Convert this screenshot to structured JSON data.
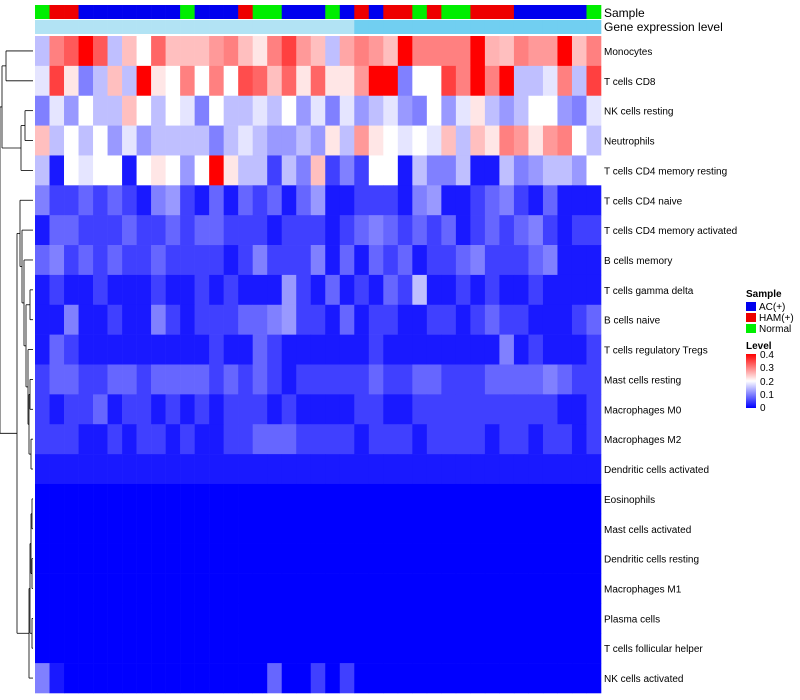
{
  "chart_data": {
    "type": "heatmap",
    "title": "",
    "annotation_titles": [
      "Sample",
      "Gene expression level"
    ],
    "rows": [
      "Monocytes",
      "T cells CD8",
      "NK cells resting",
      "Neutrophils",
      "T cells CD4 memory resting",
      "T cells CD4 naive",
      "T cells CD4 memory activated",
      "B cells memory",
      "T cells gamma delta",
      "B cells naive",
      "T cells regulatory  Tregs",
      "Mast cells resting",
      "Macrophages M0",
      "Macrophages M2",
      "Dendritic cells activated",
      "Eosinophils",
      "Mast cells activated",
      "Dendritic cells resting",
      "Macrophages M1",
      "Plasma cells",
      "T cells follicular helper",
      "NK cells activated"
    ],
    "sample_groups": [
      "N",
      "H",
      "H",
      "A",
      "A",
      "A",
      "A",
      "A",
      "A",
      "A",
      "N",
      "A",
      "A",
      "A",
      "H",
      "N",
      "N",
      "A",
      "A",
      "A",
      "N",
      "A",
      "H",
      "A",
      "H",
      "H",
      "N",
      "H",
      "N",
      "N",
      "H",
      "H",
      "H",
      "A",
      "A",
      "A",
      "A",
      "A",
      "N"
    ],
    "expression_level": [
      0.2,
      0.2,
      0.2,
      0.2,
      0.2,
      0.2,
      0.2,
      0.2,
      0.2,
      0.2,
      0.2,
      0.2,
      0.2,
      0.2,
      0.2,
      0.2,
      0.2,
      0.2,
      0.2,
      0.2,
      0.2,
      0.2,
      0.8,
      0.8,
      0.8,
      0.8,
      0.8,
      0.8,
      0.8,
      0.8,
      0.8,
      0.8,
      0.8,
      0.8,
      0.8,
      0.8,
      0.8,
      0.8,
      0.8
    ],
    "values": [
      [
        0.15,
        0.3,
        0.33,
        0.4,
        0.33,
        0.15,
        0.25,
        0.2,
        0.32,
        0.25,
        0.25,
        0.25,
        0.28,
        0.3,
        0.25,
        0.22,
        0.3,
        0.35,
        0.28,
        0.25,
        0.15,
        0.27,
        0.3,
        0.28,
        0.25,
        0.4,
        0.3,
        0.3,
        0.3,
        0.3,
        0.4,
        0.26,
        0.25,
        0.3,
        0.28,
        0.28,
        0.4,
        0.25,
        0.3
      ],
      [
        0.18,
        0.35,
        0.22,
        0.1,
        0.15,
        0.25,
        0.15,
        0.4,
        0.22,
        0.2,
        0.3,
        0.2,
        0.3,
        0.2,
        0.34,
        0.32,
        0.25,
        0.32,
        0.22,
        0.32,
        0.22,
        0.22,
        0.28,
        0.4,
        0.4,
        0.1,
        0.2,
        0.2,
        0.35,
        0.3,
        0.4,
        0.3,
        0.4,
        0.15,
        0.15,
        0.18,
        0.3,
        0.15,
        0.35
      ],
      [
        0.1,
        0.18,
        0.12,
        0.2,
        0.15,
        0.15,
        0.25,
        0.2,
        0.15,
        0.2,
        0.18,
        0.1,
        0.2,
        0.15,
        0.15,
        0.18,
        0.15,
        0.2,
        0.12,
        0.18,
        0.1,
        0.18,
        0.12,
        0.15,
        0.18,
        0.12,
        0.1,
        0.2,
        0.12,
        0.18,
        0.22,
        0.15,
        0.12,
        0.15,
        0.2,
        0.2,
        0.12,
        0.1,
        0.18
      ],
      [
        0.25,
        0.15,
        0.2,
        0.15,
        0.2,
        0.12,
        0.18,
        0.12,
        0.15,
        0.15,
        0.15,
        0.15,
        0.1,
        0.15,
        0.18,
        0.15,
        0.12,
        0.12,
        0.15,
        0.12,
        0.22,
        0.15,
        0.28,
        0.22,
        0.2,
        0.18,
        0.2,
        0.18,
        0.25,
        0.15,
        0.25,
        0.22,
        0.3,
        0.28,
        0.22,
        0.28,
        0.3,
        0.2,
        0.15
      ],
      [
        0.15,
        0.02,
        0.2,
        0.18,
        0.2,
        0.2,
        0.02,
        0.2,
        0.22,
        0.2,
        0.12,
        0.2,
        0.4,
        0.22,
        0.15,
        0.15,
        0.05,
        0.15,
        0.1,
        0.25,
        0.05,
        0.1,
        0.05,
        0.2,
        0.2,
        0.02,
        0.15,
        0.1,
        0.1,
        0.15,
        0.02,
        0.02,
        0.15,
        0.1,
        0.12,
        0.15,
        0.15,
        0.12,
        0.2
      ],
      [
        0.1,
        0.05,
        0.05,
        0.08,
        0.05,
        0.08,
        0.05,
        0.02,
        0.1,
        0.12,
        0.05,
        0.02,
        0.08,
        0.02,
        0.08,
        0.05,
        0.08,
        0.02,
        0.08,
        0.12,
        0.02,
        0.02,
        0.05,
        0.05,
        0.05,
        0.02,
        0.1,
        0.12,
        0.02,
        0.02,
        0.05,
        0.08,
        0.1,
        0.05,
        0.02,
        0.08,
        0.02,
        0.02,
        0.02
      ],
      [
        0.02,
        0.08,
        0.08,
        0.05,
        0.05,
        0.05,
        0.08,
        0.05,
        0.05,
        0.08,
        0.05,
        0.08,
        0.08,
        0.05,
        0.05,
        0.05,
        0.02,
        0.05,
        0.05,
        0.05,
        0.02,
        0.05,
        0.08,
        0.1,
        0.08,
        0.05,
        0.08,
        0.05,
        0.08,
        0.02,
        0.05,
        0.08,
        0.05,
        0.08,
        0.1,
        0.05,
        0.02,
        0.05,
        0.05
      ],
      [
        0.08,
        0.1,
        0.05,
        0.08,
        0.05,
        0.08,
        0.05,
        0.05,
        0.08,
        0.05,
        0.05,
        0.05,
        0.05,
        0.02,
        0.05,
        0.1,
        0.05,
        0.05,
        0.05,
        0.1,
        0.02,
        0.08,
        0.02,
        0.08,
        0.05,
        0.08,
        0.02,
        0.05,
        0.05,
        0.08,
        0.1,
        0.05,
        0.05,
        0.05,
        0.08,
        0.1,
        0.02,
        0.02,
        0.02
      ],
      [
        0.02,
        0.05,
        0.02,
        0.02,
        0.05,
        0.02,
        0.02,
        0.02,
        0.05,
        0.02,
        0.02,
        0.05,
        0.02,
        0.05,
        0.02,
        0.02,
        0.02,
        0.12,
        0.05,
        0.02,
        0.08,
        0.02,
        0.05,
        0.02,
        0.08,
        0.05,
        0.15,
        0.02,
        0.02,
        0.05,
        0.02,
        0.05,
        0.02,
        0.02,
        0.05,
        0.02,
        0.02,
        0.02,
        0.02
      ],
      [
        0.02,
        0.02,
        0.1,
        0.02,
        0.02,
        0.05,
        0.02,
        0.02,
        0.1,
        0.05,
        0.02,
        0.05,
        0.05,
        0.05,
        0.08,
        0.08,
        0.1,
        0.12,
        0.05,
        0.05,
        0.02,
        0.08,
        0.02,
        0.05,
        0.05,
        0.02,
        0.02,
        0.05,
        0.05,
        0.02,
        0.05,
        0.08,
        0.05,
        0.05,
        0.02,
        0.02,
        0.02,
        0.05,
        0.08
      ],
      [
        0.02,
        0.08,
        0.05,
        0.02,
        0.02,
        0.02,
        0.02,
        0.02,
        0.02,
        0.02,
        0.02,
        0.02,
        0.05,
        0.02,
        0.02,
        0.08,
        0.05,
        0.02,
        0.02,
        0.02,
        0.02,
        0.02,
        0.02,
        0.05,
        0.02,
        0.02,
        0.02,
        0.02,
        0.02,
        0.02,
        0.02,
        0.02,
        0.1,
        0.02,
        0.05,
        0.02,
        0.02,
        0.02,
        0.05
      ],
      [
        0.05,
        0.08,
        0.08,
        0.05,
        0.05,
        0.08,
        0.08,
        0.05,
        0.08,
        0.08,
        0.08,
        0.08,
        0.05,
        0.08,
        0.05,
        0.08,
        0.05,
        0.02,
        0.05,
        0.05,
        0.05,
        0.05,
        0.05,
        0.08,
        0.05,
        0.05,
        0.08,
        0.08,
        0.05,
        0.05,
        0.05,
        0.08,
        0.08,
        0.08,
        0.08,
        0.1,
        0.08,
        0.05,
        0.05
      ],
      [
        0.05,
        0.02,
        0.05,
        0.05,
        0.08,
        0.02,
        0.05,
        0.05,
        0.02,
        0.05,
        0.02,
        0.05,
        0.02,
        0.05,
        0.05,
        0.05,
        0.02,
        0.05,
        0.02,
        0.02,
        0.02,
        0.02,
        0.05,
        0.05,
        0.02,
        0.02,
        0.05,
        0.05,
        0.05,
        0.05,
        0.05,
        0.05,
        0.05,
        0.05,
        0.05,
        0.05,
        0.02,
        0.02,
        0.05
      ],
      [
        0.05,
        0.05,
        0.05,
        0.02,
        0.02,
        0.05,
        0.02,
        0.05,
        0.05,
        0.02,
        0.05,
        0.02,
        0.02,
        0.05,
        0.05,
        0.08,
        0.08,
        0.08,
        0.05,
        0.05,
        0.05,
        0.05,
        0.02,
        0.05,
        0.05,
        0.05,
        0.02,
        0.05,
        0.05,
        0.05,
        0.05,
        0.02,
        0.05,
        0.05,
        0.02,
        0.05,
        0.05,
        0.02,
        0.05
      ],
      [
        0.02,
        0.02,
        0.02,
        0.02,
        0.02,
        0.02,
        0.02,
        0.02,
        0.02,
        0.02,
        0.02,
        0.02,
        0.02,
        0.02,
        0.02,
        0.02,
        0.02,
        0.02,
        0.02,
        0.02,
        0.02,
        0.02,
        0.02,
        0.02,
        0.02,
        0.02,
        0.02,
        0.02,
        0.02,
        0.02,
        0.02,
        0.02,
        0.02,
        0.02,
        0.02,
        0.02,
        0.02,
        0.02,
        0.02
      ],
      [
        0,
        0,
        0,
        0,
        0,
        0,
        0,
        0,
        0,
        0,
        0,
        0,
        0,
        0,
        0,
        0,
        0,
        0,
        0,
        0,
        0,
        0,
        0,
        0,
        0,
        0,
        0,
        0,
        0,
        0,
        0,
        0,
        0,
        0,
        0,
        0,
        0,
        0,
        0
      ],
      [
        0,
        0,
        0,
        0,
        0,
        0,
        0,
        0,
        0,
        0,
        0,
        0,
        0,
        0,
        0,
        0,
        0,
        0,
        0,
        0,
        0,
        0,
        0,
        0,
        0,
        0,
        0,
        0,
        0,
        0,
        0,
        0,
        0,
        0,
        0,
        0,
        0,
        0,
        0
      ],
      [
        0,
        0,
        0,
        0,
        0,
        0,
        0,
        0,
        0,
        0,
        0,
        0,
        0,
        0,
        0,
        0,
        0,
        0,
        0,
        0,
        0,
        0,
        0,
        0,
        0,
        0,
        0,
        0,
        0,
        0,
        0,
        0,
        0,
        0,
        0,
        0,
        0,
        0,
        0
      ],
      [
        0,
        0,
        0,
        0,
        0,
        0,
        0,
        0,
        0,
        0,
        0,
        0,
        0,
        0,
        0,
        0,
        0,
        0,
        0,
        0,
        0,
        0,
        0,
        0,
        0,
        0,
        0,
        0,
        0,
        0,
        0,
        0,
        0,
        0,
        0,
        0,
        0,
        0,
        0
      ],
      [
        0,
        0,
        0,
        0,
        0,
        0,
        0,
        0,
        0,
        0,
        0,
        0,
        0,
        0,
        0,
        0,
        0,
        0,
        0,
        0,
        0,
        0,
        0,
        0,
        0,
        0,
        0,
        0,
        0,
        0,
        0,
        0,
        0,
        0,
        0,
        0,
        0,
        0,
        0
      ],
      [
        0,
        0,
        0,
        0,
        0,
        0,
        0,
        0,
        0,
        0,
        0,
        0,
        0,
        0,
        0,
        0,
        0,
        0,
        0,
        0,
        0,
        0,
        0,
        0,
        0,
        0,
        0,
        0,
        0,
        0,
        0,
        0,
        0,
        0,
        0,
        0,
        0,
        0,
        0
      ],
      [
        0.1,
        0.02,
        0,
        0,
        0,
        0,
        0,
        0,
        0,
        0,
        0,
        0,
        0,
        0,
        0,
        0,
        0.08,
        0,
        0,
        0.05,
        0,
        0.05,
        0,
        0,
        0,
        0,
        0,
        0,
        0,
        0,
        0,
        0,
        0,
        0,
        0,
        0,
        0,
        0,
        0
      ]
    ],
    "legend": {
      "sample": {
        "title": "Sample",
        "entries": [
          {
            "label": "AC(+)",
            "color": "#0000ee"
          },
          {
            "label": "HAM(+)",
            "color": "#ee0000"
          },
          {
            "label": "Normal",
            "color": "#00ee00"
          }
        ]
      },
      "level": {
        "title": "Level",
        "ticks": [
          "0.4",
          "0.3",
          "0.2",
          "0.1",
          "0"
        ],
        "range": [
          0,
          0.4
        ],
        "low_color": "#0000ff",
        "mid_color": "#ffffff",
        "high_color": "#ff0000"
      }
    },
    "group_colors": {
      "A": "#0000ee",
      "H": "#ee0000",
      "N": "#00ee00"
    },
    "expression_colors": {
      "low": "#c8eaf5",
      "high": "#5bc8f0"
    }
  }
}
